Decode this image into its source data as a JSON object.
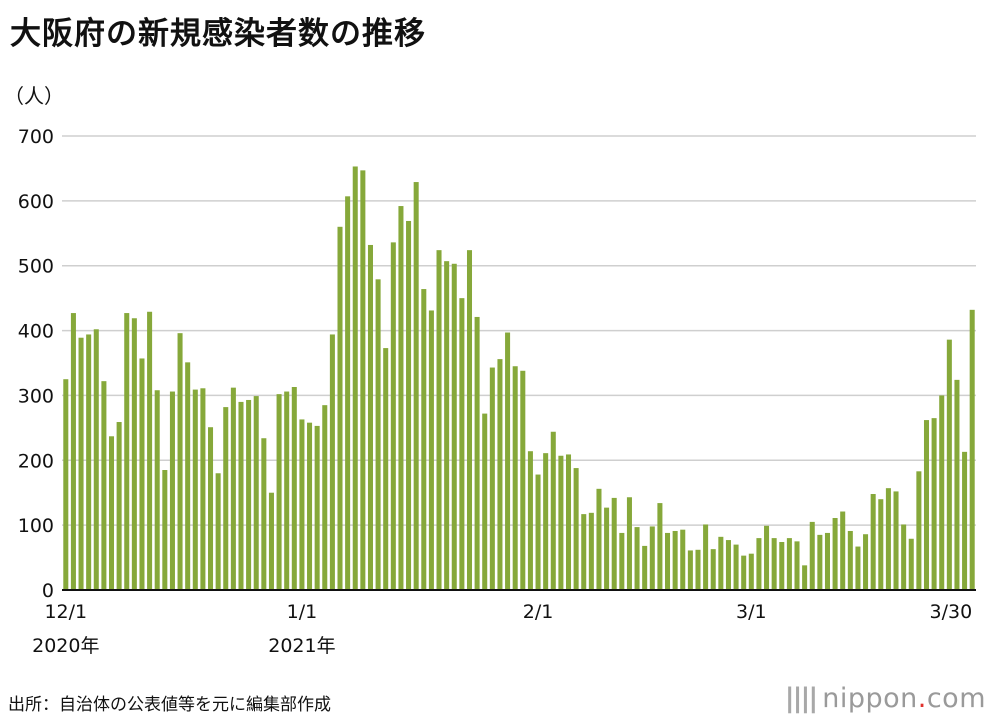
{
  "title": "大阪府の新規感染者数の推移",
  "source": "出所：自治体の公表値等を元に編集部作成",
  "logo": {
    "mark": "||||",
    "name": "nippon",
    "dot": ".",
    "tld": "com"
  },
  "colors": {
    "bar": "#86a83a",
    "grid": "#cfcfcf",
    "axis": "#111111"
  },
  "chart_data": {
    "type": "bar",
    "ylabel": "（人）",
    "ylim": [
      0,
      700
    ],
    "yticks": [
      0,
      100,
      200,
      300,
      400,
      500,
      600,
      700
    ],
    "grid": true,
    "xtick_labels": [
      {
        "index": 0,
        "label": "12/1",
        "sub": "2020年"
      },
      {
        "index": 31,
        "label": "1/1",
        "sub": "2021年"
      },
      {
        "index": 62,
        "label": "2/1",
        "sub": ""
      },
      {
        "index": 90,
        "label": "3/1",
        "sub": ""
      },
      {
        "index": 119,
        "label": "3/30",
        "sub": ""
      }
    ],
    "categories": [
      "12/1",
      "12/2",
      "12/3",
      "12/4",
      "12/5",
      "12/6",
      "12/7",
      "12/8",
      "12/9",
      "12/10",
      "12/11",
      "12/12",
      "12/13",
      "12/14",
      "12/15",
      "12/16",
      "12/17",
      "12/18",
      "12/19",
      "12/20",
      "12/21",
      "12/22",
      "12/23",
      "12/24",
      "12/25",
      "12/26",
      "12/27",
      "12/28",
      "12/29",
      "12/30",
      "12/31",
      "1/1",
      "1/2",
      "1/3",
      "1/4",
      "1/5",
      "1/6",
      "1/7",
      "1/8",
      "1/9",
      "1/10",
      "1/11",
      "1/12",
      "1/13",
      "1/14",
      "1/15",
      "1/16",
      "1/17",
      "1/18",
      "1/19",
      "1/20",
      "1/21",
      "1/22",
      "1/23",
      "1/24",
      "1/25",
      "1/26",
      "1/27",
      "1/28",
      "1/29",
      "1/30",
      "1/31",
      "2/1",
      "2/2",
      "2/3",
      "2/4",
      "2/5",
      "2/6",
      "2/7",
      "2/8",
      "2/9",
      "2/10",
      "2/11",
      "2/12",
      "2/13",
      "2/14",
      "2/15",
      "2/16",
      "2/17",
      "2/18",
      "2/19",
      "2/20",
      "2/21",
      "2/22",
      "2/23",
      "2/24",
      "2/25",
      "2/26",
      "2/27",
      "2/28",
      "3/1",
      "3/2",
      "3/3",
      "3/4",
      "3/5",
      "3/6",
      "3/7",
      "3/8",
      "3/9",
      "3/10",
      "3/11",
      "3/12",
      "3/13",
      "3/14",
      "3/15",
      "3/16",
      "3/17",
      "3/18",
      "3/19",
      "3/20",
      "3/21",
      "3/22",
      "3/23",
      "3/24",
      "3/25",
      "3/26",
      "3/27",
      "3/28",
      "3/29",
      "3/30"
    ],
    "values": [
      325,
      427,
      389,
      394,
      402,
      322,
      237,
      259,
      427,
      419,
      357,
      429,
      308,
      185,
      306,
      396,
      351,
      309,
      311,
      251,
      180,
      282,
      312,
      290,
      293,
      299,
      234,
      150,
      302,
      306,
      313,
      263,
      258,
      253,
      285,
      394,
      560,
      607,
      653,
      647,
      532,
      479,
      373,
      536,
      592,
      569,
      629,
      464,
      431,
      524,
      507,
      503,
      450,
      524,
      421,
      272,
      343,
      356,
      397,
      345,
      338,
      214,
      178,
      211,
      244,
      207,
      209,
      188,
      117,
      119,
      156,
      127,
      142,
      88,
      143,
      97,
      68,
      98,
      134,
      88,
      91,
      93,
      61,
      62,
      101,
      63,
      82,
      77,
      70,
      53,
      56,
      80,
      99,
      80,
      74,
      80,
      75,
      38,
      105,
      85,
      88,
      111,
      121,
      91,
      67,
      86,
      148,
      140,
      157,
      152,
      101,
      79,
      183,
      262,
      265,
      300,
      386,
      324,
      213,
      432
    ]
  }
}
